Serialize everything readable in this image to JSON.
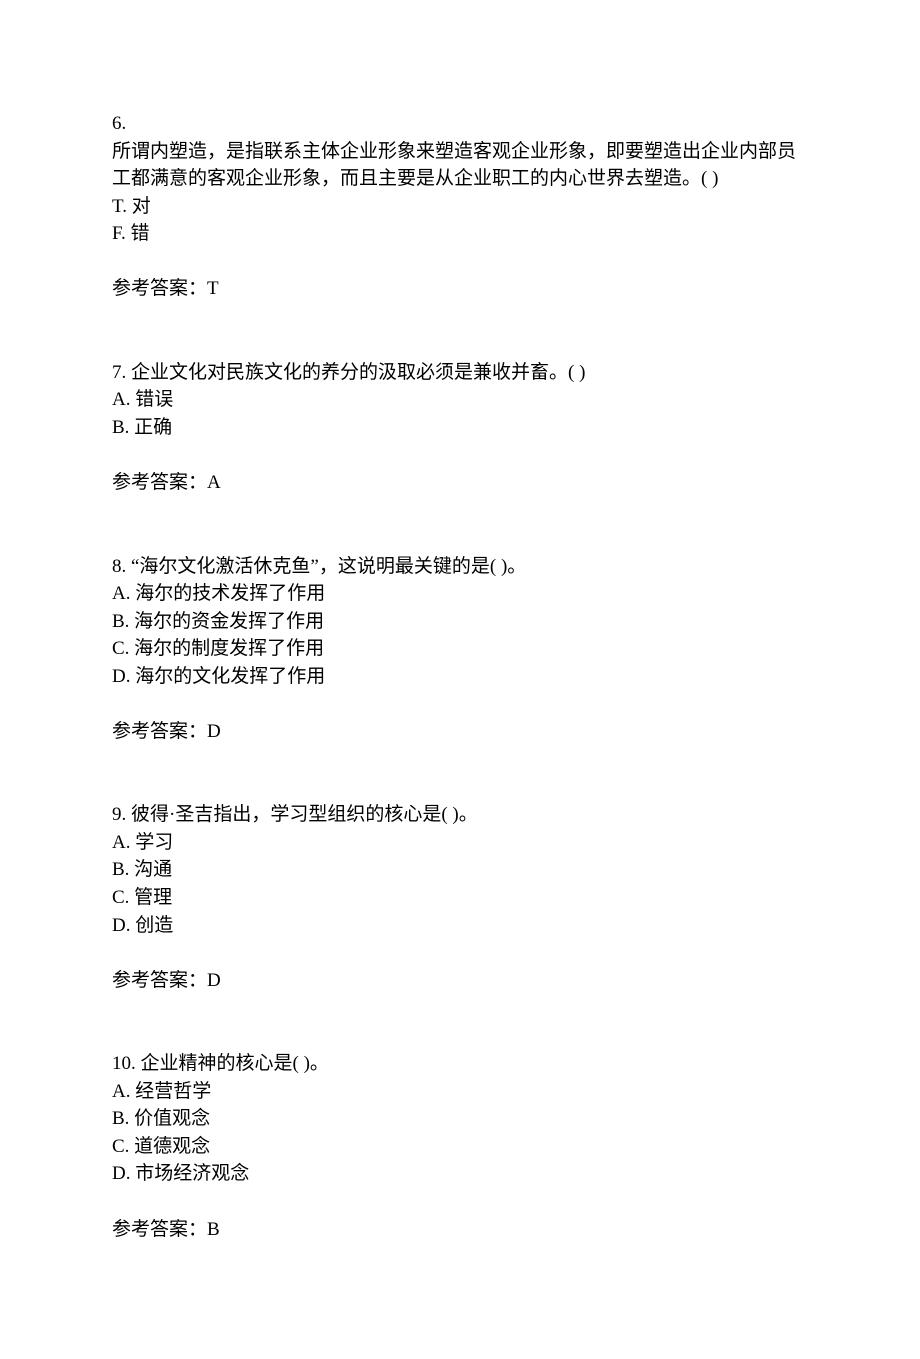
{
  "questions": [
    {
      "number": "6.",
      "text_lines": [
        "所谓内塑造，是指联系主体企业形象来塑造客观企业形象，即要塑造出企业内部员工都满意的客观企业形象，而且主要是从企业职工的内心世界去塑造。(   )"
      ],
      "options": [
        "T. 对",
        "F. 错"
      ],
      "answer_label": "参考答案：",
      "answer": "T",
      "number_separate": true
    },
    {
      "number": "7.",
      "text": "企业文化对民族文化的养分的汲取必须是兼收并畜。(   )",
      "options": [
        "A. 错误",
        "B. 正确"
      ],
      "answer_label": "参考答案：",
      "answer": "A"
    },
    {
      "number": "8.",
      "text": "“海尔文化激活休克鱼”，这说明最关键的是(   )。",
      "options": [
        "A. 海尔的技术发挥了作用",
        "B. 海尔的资金发挥了作用",
        "C. 海尔的制度发挥了作用",
        "D. 海尔的文化发挥了作用"
      ],
      "answer_label": "参考答案：",
      "answer": "D"
    },
    {
      "number": "9.",
      "text": "彼得·圣吉指出，学习型组织的核心是(   )。",
      "options": [
        "A. 学习",
        "B. 沟通",
        "C. 管理",
        "D. 创造"
      ],
      "answer_label": "参考答案：",
      "answer": "D"
    },
    {
      "number": "10.",
      "text": "企业精神的核心是(   )。",
      "options": [
        "A. 经营哲学",
        "B. 价值观念",
        "C. 道德观念",
        "D. 市场经济观念"
      ],
      "answer_label": "参考答案：",
      "answer": "B"
    }
  ]
}
